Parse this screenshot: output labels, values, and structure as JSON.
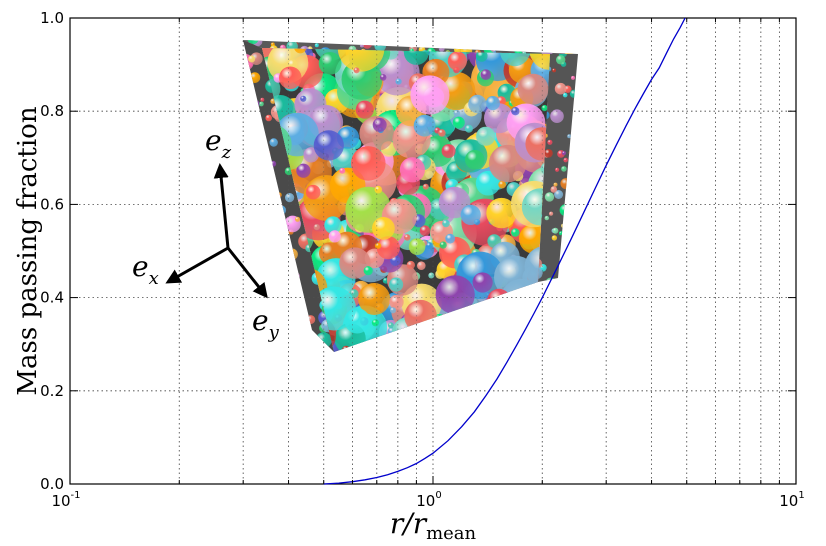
{
  "chart_data": {
    "type": "line",
    "xscale": "log",
    "xlim": [
      0.1,
      10
    ],
    "ylim": [
      0.0,
      1.0
    ],
    "grid": true,
    "xlabel": "r/r_mean",
    "xlabel_parts": {
      "main": "r/r",
      "sub": "mean"
    },
    "ylabel": "Mass passing fraction",
    "xticks": [
      {
        "value": 0.1,
        "base": "10",
        "exp": "-1"
      },
      {
        "value": 1,
        "base": "10",
        "exp": "0"
      },
      {
        "value": 10,
        "base": "10",
        "exp": "1"
      }
    ],
    "yticks": [
      "0.0",
      "0.2",
      "0.4",
      "0.6",
      "0.8",
      "1.0"
    ],
    "series": [
      {
        "color": "#0000cc",
        "x": [
          0.5,
          0.55,
          0.6,
          0.65,
          0.7,
          0.75,
          0.8,
          0.85,
          0.9,
          0.95,
          1.0,
          1.1,
          1.2,
          1.3,
          1.4,
          1.5,
          1.6,
          1.7,
          1.8,
          1.9,
          2.0,
          2.2,
          2.4,
          2.6,
          2.8,
          3.0,
          3.2,
          3.4,
          3.6,
          3.8,
          4.0,
          4.2,
          4.4,
          4.6,
          4.8,
          4.95
        ],
        "y": [
          0.0,
          0.002,
          0.005,
          0.009,
          0.014,
          0.02,
          0.027,
          0.035,
          0.044,
          0.055,
          0.066,
          0.093,
          0.123,
          0.155,
          0.19,
          0.225,
          0.262,
          0.298,
          0.333,
          0.367,
          0.4,
          0.465,
          0.525,
          0.582,
          0.635,
          0.684,
          0.728,
          0.768,
          0.805,
          0.838,
          0.868,
          0.893,
          0.925,
          0.955,
          0.98,
          1.0
        ]
      }
    ]
  },
  "inset": {
    "axes_labels": [
      {
        "main": "e",
        "sub": "z"
      },
      {
        "main": "e",
        "sub": "x"
      },
      {
        "main": "e",
        "sub": "y"
      }
    ]
  }
}
